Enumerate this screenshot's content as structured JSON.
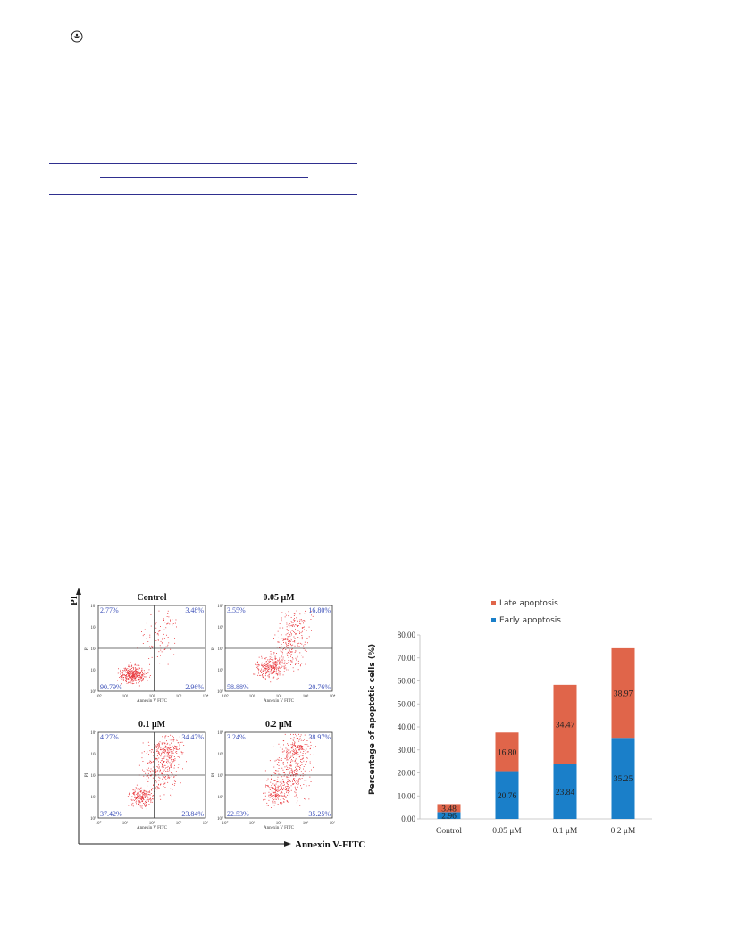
{
  "logo": {
    "icon": "journal-logo-icon"
  },
  "flow_cytometry": {
    "y_axis_label": "PI",
    "x_axis_label": "Annexin V-FITC",
    "panel_x_label": "Annexin V FITC",
    "panel_y_label": "PI",
    "tick_labels": [
      "10⁰",
      "10¹",
      "10²",
      "10³",
      "10⁴"
    ],
    "panels": [
      {
        "title": "Control",
        "q_ul": "2.77%",
        "q_ur": "3.48%",
        "q_ll": "90.79%",
        "q_lr": "2.96%"
      },
      {
        "title": "0.05 μM",
        "q_ul": "3.55%",
        "q_ur": "16.80%",
        "q_ll": "58.88%",
        "q_lr": "20.76%"
      },
      {
        "title": "0.1 μM",
        "q_ul": "4.27%",
        "q_ur": "34.47%",
        "q_ll": "37.42%",
        "q_lr": "23.84%"
      },
      {
        "title": "0.2 μM",
        "q_ul": "3.24%",
        "q_ur": "38.97%",
        "q_ll": "22.53%",
        "q_lr": "35.25%"
      }
    ],
    "dot_color": "#e8353a",
    "quadrant_text_color": "#3b4fb8"
  },
  "chart_data": {
    "type": "bar",
    "stacked": true,
    "categories": [
      "Control",
      "0.05 μM",
      "0.1 μM",
      "0.2 μM"
    ],
    "series": [
      {
        "name": "Early apoptosis",
        "values": [
          2.96,
          20.76,
          23.84,
          35.25
        ],
        "color": "#1a7fc9",
        "labels": [
          "2.96",
          "20.76",
          "23.84",
          "35.25"
        ]
      },
      {
        "name": "Late apoptosis",
        "values": [
          3.48,
          16.8,
          34.47,
          38.97
        ],
        "color": "#e0654a",
        "labels": [
          "3.48",
          "16.80",
          "34.47",
          "38.97"
        ]
      }
    ],
    "ylabel": "Percentage of apoptotic cells (%)",
    "xlabel": "",
    "ylim": [
      0,
      80
    ],
    "yticks": [
      "0.00",
      "10.00",
      "20.00",
      "30.00",
      "40.00",
      "50.00",
      "60.00",
      "70.00",
      "80.00"
    ],
    "legend": "top-center",
    "grid": false
  }
}
